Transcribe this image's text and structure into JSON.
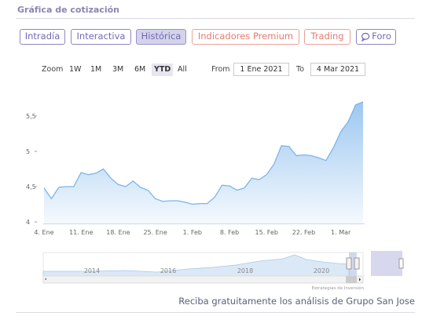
{
  "header": {
    "title": "Gráfica de cotización"
  },
  "tabs": [
    "Intradía",
    "Interactiva",
    "Histórica",
    "Indicadores Premium",
    "Trading",
    "Foro"
  ],
  "zoom": {
    "label": "Zoom",
    "buttons": [
      "1W",
      "1M",
      "3M",
      "6M",
      "YTD",
      "All"
    ],
    "from_label": "From",
    "from": "1 Ene 2021",
    "to_label": "To",
    "to": "4 Mar 2021"
  },
  "chart_data": {
    "type": "line",
    "categories": [
      "4. Ene",
      null,
      null,
      null,
      null,
      "11. Ene",
      null,
      null,
      null,
      null,
      "18. Ene",
      null,
      null,
      null,
      null,
      "25. Ene",
      null,
      null,
      null,
      null,
      "1. Feb",
      null,
      null,
      null,
      null,
      "8. Feb",
      null,
      null,
      null,
      null,
      "15. Feb",
      null,
      null,
      null,
      null,
      "22. Feb",
      null,
      null,
      null,
      null,
      "1. Mar",
      null,
      null,
      null
    ],
    "values": [
      4.48,
      4.33,
      4.49,
      4.5,
      4.5,
      4.7,
      4.67,
      4.69,
      4.75,
      4.62,
      4.53,
      4.5,
      4.58,
      4.49,
      4.45,
      4.33,
      4.29,
      4.3,
      4.3,
      4.28,
      4.25,
      4.26,
      4.26,
      4.35,
      4.52,
      4.51,
      4.45,
      4.48,
      4.62,
      4.6,
      4.67,
      4.82,
      5.08,
      5.07,
      4.94,
      4.95,
      4.94,
      4.91,
      4.87,
      5.05,
      5.28,
      5.42,
      5.66,
      5.7
    ],
    "color": "#7cb5ec",
    "ylim": [
      4,
      5.9
    ],
    "yticks": [
      4,
      {
        "value": 4.5,
        "label": "4,5"
      },
      5,
      {
        "value": 5.5,
        "label": "5,5"
      }
    ],
    "navigator_years": [
      "2014",
      "2016",
      "2018",
      "2020"
    ],
    "credit": "Estrategias de Inversión"
  },
  "footer": {
    "text": "Reciba gratuitamente los análisis de Grupo San Jose"
  }
}
